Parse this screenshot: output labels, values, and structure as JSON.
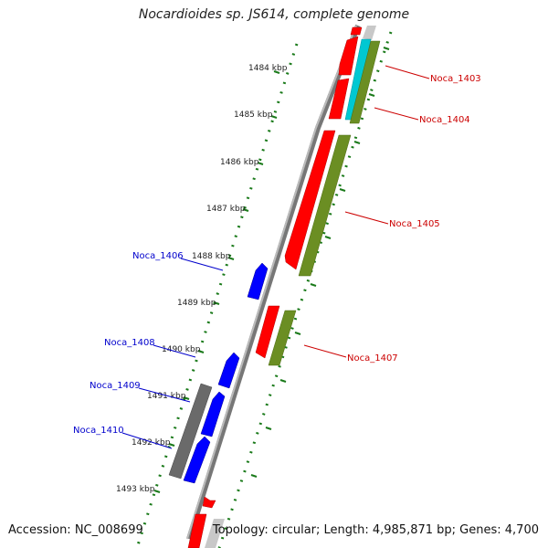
{
  "title": "Nocardioides sp. JS614, complete genome",
  "footer": {
    "accession": "Accession: NC_008699",
    "stats": "Topology: circular; Length: 4,985,871 bp; Genes: 4,700"
  },
  "ticks": [
    "1484 kbp",
    "1485 kbp",
    "1486 kbp",
    "1487 kbp",
    "1488 kbp",
    "1489 kbp",
    "1490 kbp",
    "1491 kbp",
    "1492 kbp",
    "1493 kbp"
  ],
  "genes": {
    "Noca_1403": "Noca_1403",
    "Noca_1404": "Noca_1404",
    "Noca_1405": "Noca_1405",
    "Noca_1406": "Noca_1406",
    "Noca_1407": "Noca_1407",
    "Noca_1408": "Noca_1408",
    "Noca_1409": "Noca_1409",
    "Noca_1410": "Noca_1410"
  },
  "colors": {
    "forward_cds": "#ff0000",
    "reverse_cds": "#0000ff",
    "forward_label": "#cc0000",
    "reverse_label": "#0000cc",
    "olive": "#6b8e23",
    "cyan": "#00c8d2",
    "gray": "#666666",
    "tick_green": "#1a7a1a"
  }
}
